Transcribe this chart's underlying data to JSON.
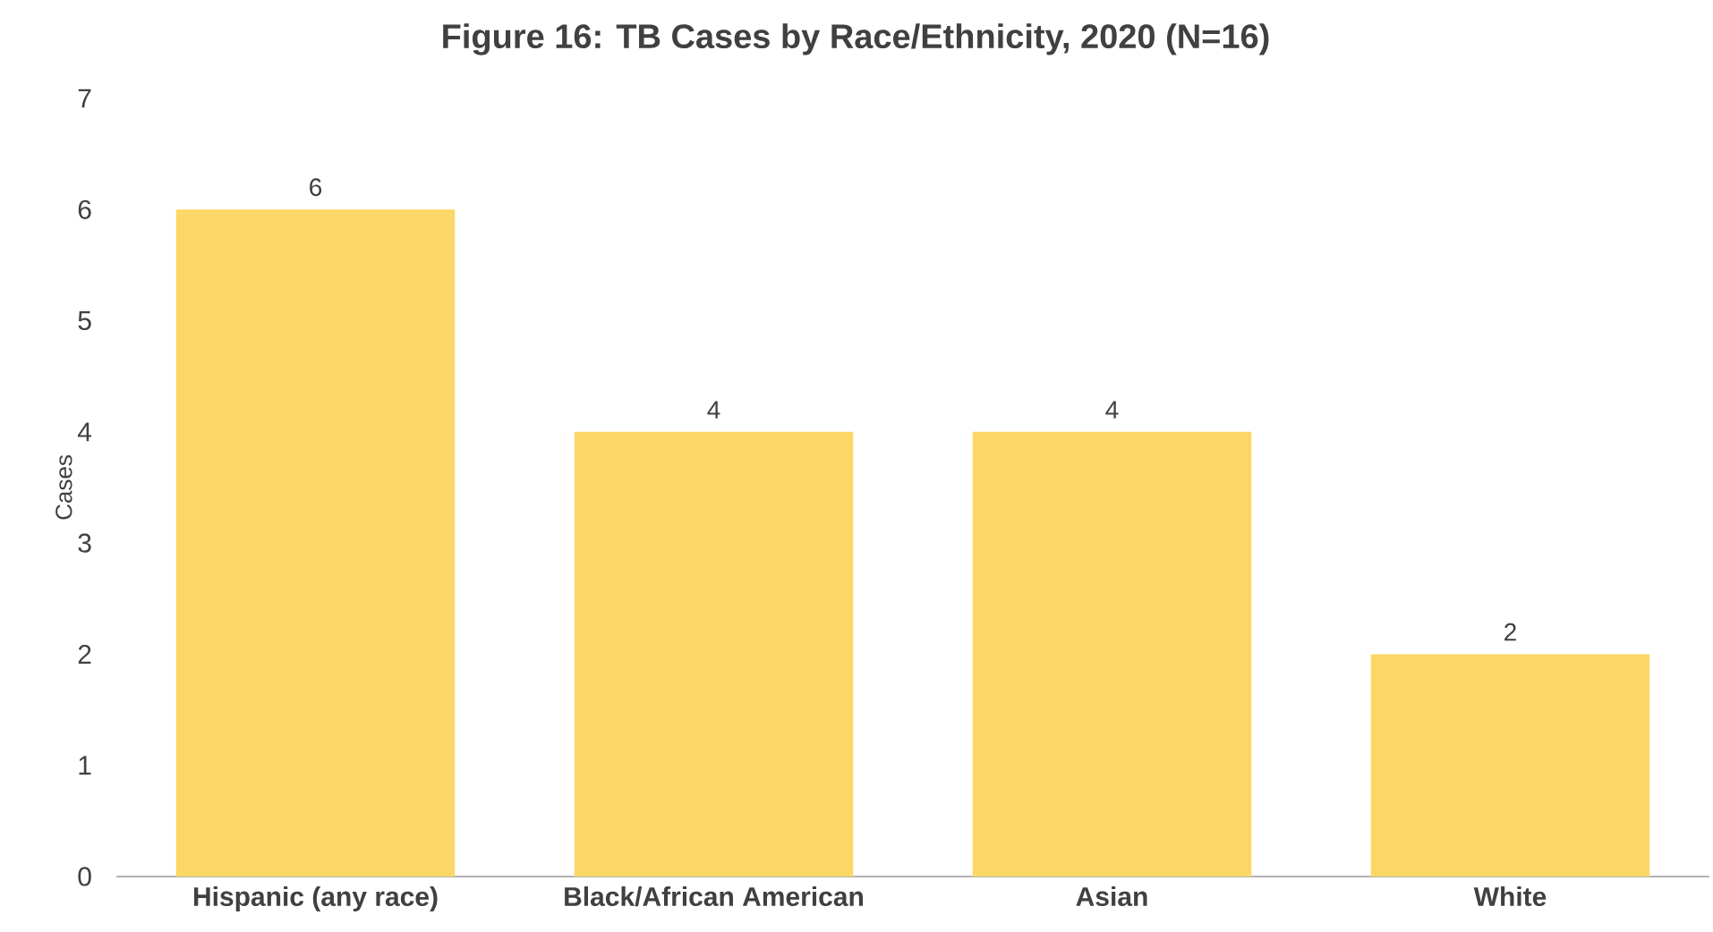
{
  "chart_data": {
    "type": "bar",
    "title": "Figure 16: TB Cases by Race/Ethnicity, 2020 (N=16)",
    "ylabel": "Cases",
    "categories": [
      "Hispanic (any race)",
      "Black/African American",
      "Asian",
      "White"
    ],
    "values": [
      6,
      4,
      4,
      2
    ],
    "color": "#fcd667",
    "ylim": [
      0,
      7
    ],
    "yticks": [
      0,
      1,
      2,
      3,
      4,
      5,
      6,
      7
    ],
    "data_labels": true,
    "grid": false
  }
}
